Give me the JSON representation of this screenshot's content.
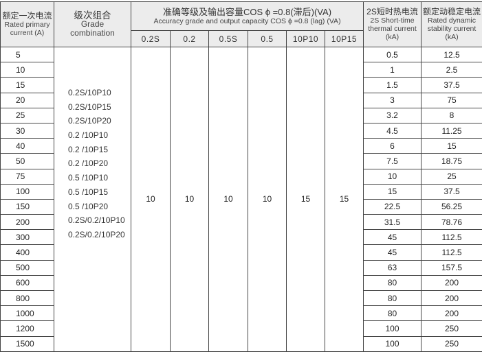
{
  "headers": {
    "current": {
      "zh": "额定一次电流",
      "en1": "Rated primary",
      "en2": "current (A)"
    },
    "grade": {
      "zh": "级次组合",
      "en1": "Grade",
      "en2": "combination"
    },
    "accuracy": {
      "zh": "准确等级及输出容量COS ϕ =0.8(滞后)(VA)",
      "en": "Accuracy grade and output capacity COS ϕ =0.8 (lag) (VA)"
    },
    "accuracy_classes": [
      "0.2S",
      "0.2",
      "0.5S",
      "0.5",
      "10P10",
      "10P15"
    ],
    "thermal": {
      "zh": "2S短时热电流",
      "en1": "2S Short-time",
      "en2": "thermal current",
      "en3": "(kA)"
    },
    "dynamic": {
      "zh": "额定动稳定电流",
      "en1": "Rated dynamic",
      "en2": "stability current",
      "en3": "(kA)"
    }
  },
  "grade_combinations": [
    "0.2S/10P10",
    "0.2S/10P15",
    "0.2S/10P20",
    "0.2 /10P10",
    "0.2 /10P15",
    "0.2 /10P20",
    "0.5 /10P10",
    "0.5 /10P15",
    "0.5 /10P20",
    "0.2S/0.2/10P10",
    "0.2S/0.2/10P20"
  ],
  "accuracy_values": [
    "10",
    "10",
    "10",
    "10",
    "15",
    "15"
  ],
  "rows": [
    {
      "current": "5",
      "thermal": "0.5",
      "dynamic": "12.5"
    },
    {
      "current": "10",
      "thermal": "1",
      "dynamic": "2.5"
    },
    {
      "current": "15",
      "thermal": "1.5",
      "dynamic": "37.5"
    },
    {
      "current": "20",
      "thermal": "3",
      "dynamic": "75"
    },
    {
      "current": "25",
      "thermal": "3.2",
      "dynamic": "8"
    },
    {
      "current": "30",
      "thermal": "4.5",
      "dynamic": "11.25"
    },
    {
      "current": "40",
      "thermal": "6",
      "dynamic": "15"
    },
    {
      "current": "50",
      "thermal": "7.5",
      "dynamic": "18.75"
    },
    {
      "current": "75",
      "thermal": "10",
      "dynamic": "25"
    },
    {
      "current": "100",
      "thermal": "15",
      "dynamic": "37.5"
    },
    {
      "current": "150",
      "thermal": "22.5",
      "dynamic": "56.25"
    },
    {
      "current": "200",
      "thermal": "31.5",
      "dynamic": "78.76"
    },
    {
      "current": "300",
      "thermal": "45",
      "dynamic": "112.5"
    },
    {
      "current": "400",
      "thermal": "45",
      "dynamic": "112.5"
    },
    {
      "current": "500",
      "thermal": "63",
      "dynamic": "157.5"
    },
    {
      "current": "600",
      "thermal": "80",
      "dynamic": "200"
    },
    {
      "current": "800",
      "thermal": "80",
      "dynamic": "200"
    },
    {
      "current": "1000",
      "thermal": "80",
      "dynamic": "200"
    },
    {
      "current": "1200",
      "thermal": "100",
      "dynamic": "250"
    },
    {
      "current": "1500",
      "thermal": "100",
      "dynamic": "250"
    }
  ]
}
